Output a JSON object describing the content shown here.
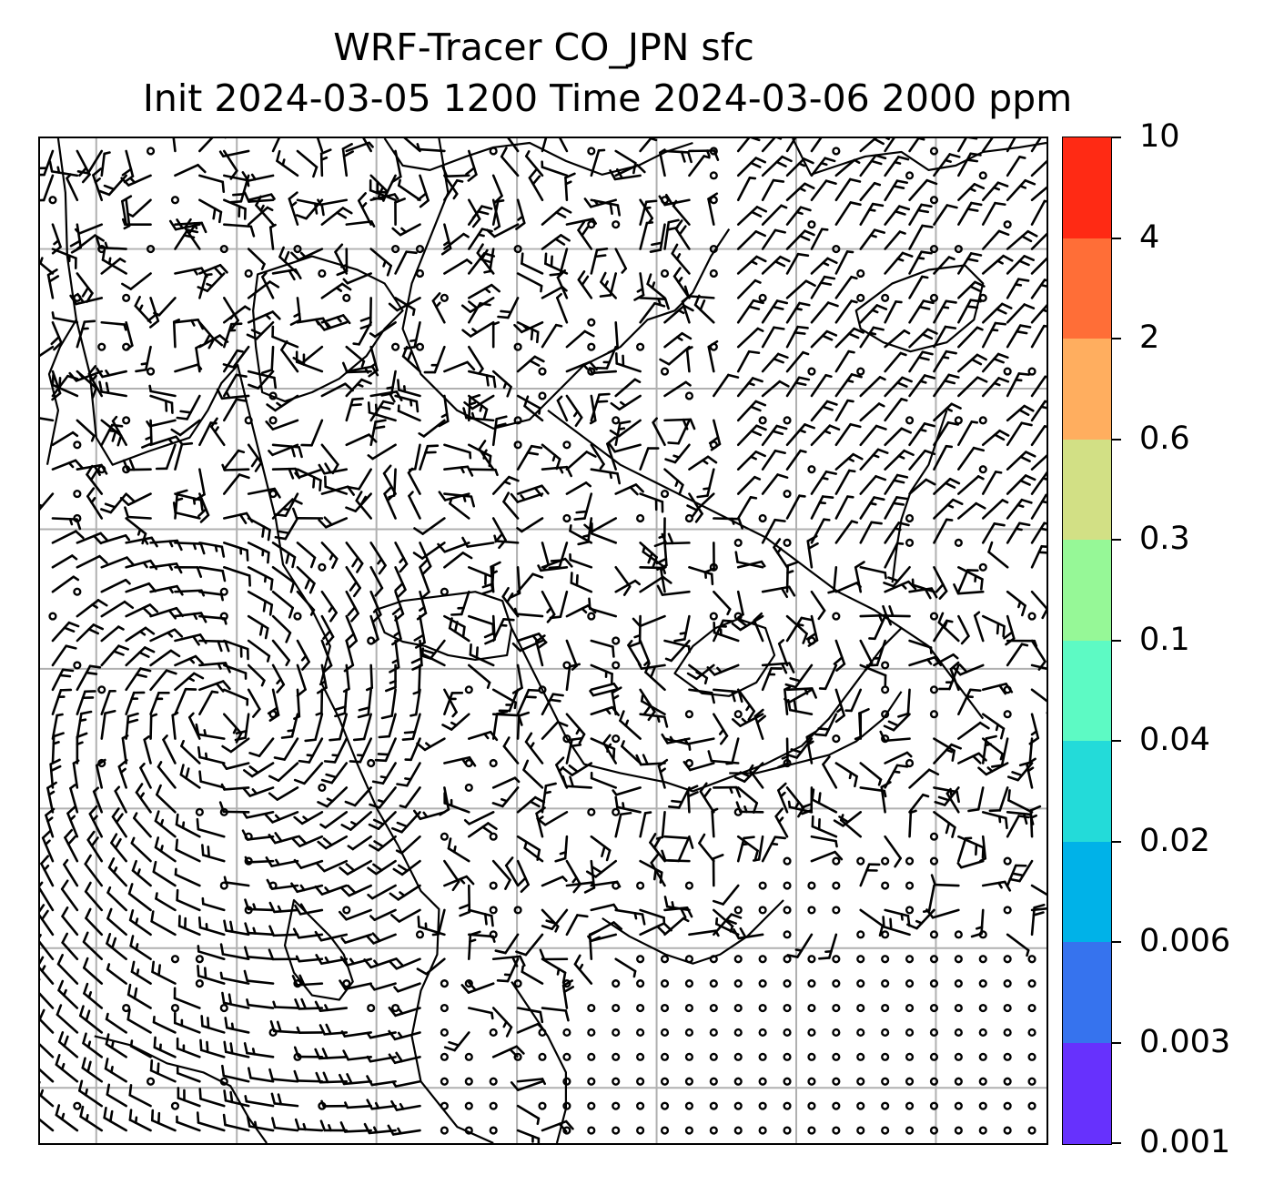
{
  "title": {
    "line1": "WRF-Tracer CO_JPN sfc",
    "line2": "Init 2024-03-05 1200 Time 2024-03-06 2000 ppm"
  },
  "colorbar": {
    "labels": [
      "10",
      "4",
      "2",
      "0.6",
      "0.3",
      "0.1",
      "0.04",
      "0.02",
      "0.006",
      "0.003",
      "0.001"
    ],
    "colors": [
      "#ff2a14",
      "#ff6e37",
      "#ffae5f",
      "#d2e085",
      "#96f897",
      "#5dfac4",
      "#23dbd9",
      "#00b2e8",
      "#3673ee",
      "#6731fd"
    ]
  },
  "map": {
    "gridlines": "on",
    "coastline_color": "#000000",
    "gridline_color": "#b0b0b0",
    "wind_symbols": "wind-barbs-and-calm-circles"
  }
}
